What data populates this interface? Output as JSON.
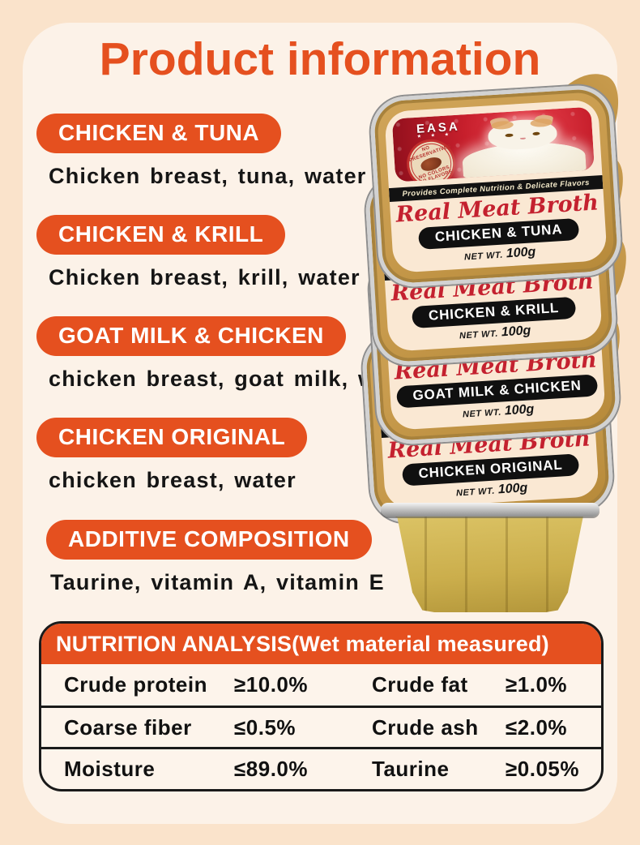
{
  "colors": {
    "accent": "#E5501F",
    "page_bg": "#FAE3CB",
    "card_bg": "#FCF2E8",
    "tray_gold": "#C89B4D",
    "label_cream": "#FAE8D3",
    "script_red": "#C4212F"
  },
  "header": {
    "title": "Product information"
  },
  "sections": [
    {
      "badge": "CHICKEN & TUNA",
      "description": "Chicken breast, tuna, water"
    },
    {
      "badge": "CHICKEN & KRILL",
      "description": "Chicken breast, krill, water"
    },
    {
      "badge": "GOAT MILK & CHICKEN",
      "description": "chicken breast, goat milk, water"
    },
    {
      "badge": "CHICKEN ORIGINAL",
      "description": "chicken breast, water"
    },
    {
      "badge": "ADDITIVE COMPOSITION",
      "description": "Taurine, vitamin A, vitamin E"
    }
  ],
  "product": {
    "brand": "EASA",
    "logo_stars": "★ ★ ★",
    "stamp_top": "NO PRESERVATIVES",
    "stamp_bottom": "NO COLORS NO FLAVORS",
    "strip": "Provides Complete Nutrition & Delicate Flavors",
    "script": "Real Meat Broth",
    "net_wt_label": "NET WT.",
    "net_wt_value": "100g",
    "flavors": [
      "CHICKEN & TUNA",
      "CHICKEN & KRILL",
      "GOAT MILK & CHICKEN",
      "CHICKEN ORIGINAL"
    ]
  },
  "nutrition": {
    "header": "NUTRITION ANALYSIS(Wet material measured)",
    "rows": [
      [
        "Crude protein",
        "≥10.0%",
        "Crude fat",
        "≥1.0%"
      ],
      [
        "Coarse fiber",
        "≤0.5%",
        "Crude ash",
        "≤2.0%"
      ],
      [
        "Moisture",
        "≤89.0%",
        "Taurine",
        "≥0.05%"
      ]
    ]
  }
}
